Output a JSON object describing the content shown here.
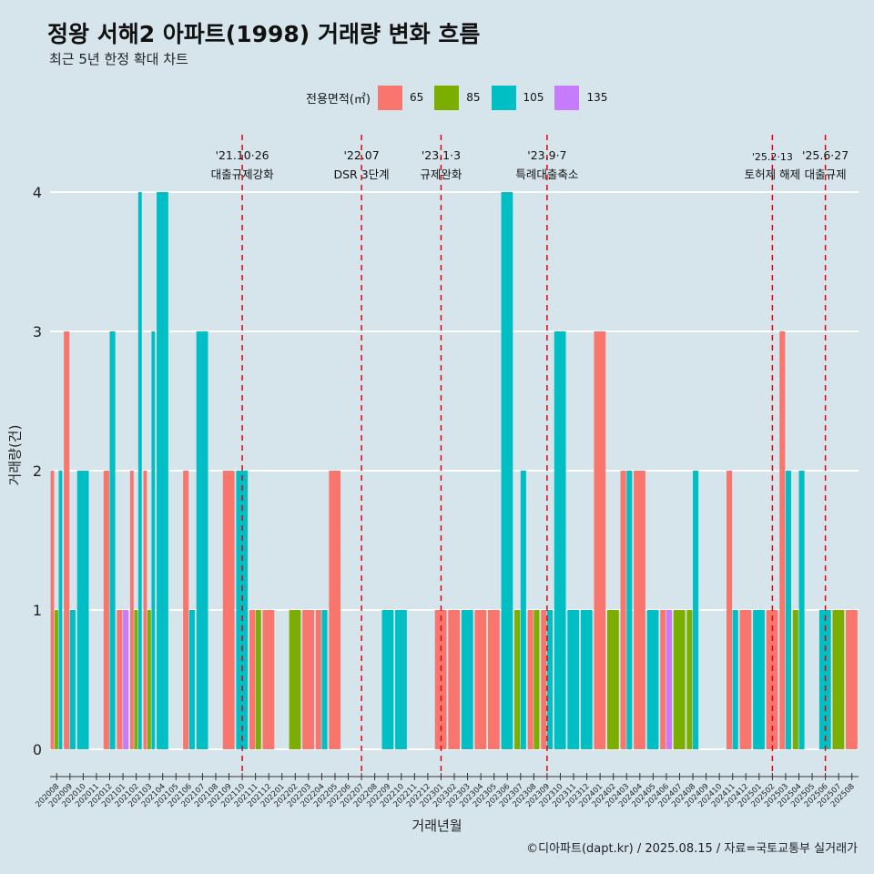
{
  "chart_data": {
    "type": "bar",
    "title": "정왕 서해2 아파트(1998) 거래량 변화 흐름",
    "subtitle": "최근 5년 한정 확대 차트",
    "xlabel": "거래년월",
    "ylabel": "거래량(건)",
    "caption": "©디아파트(dapt.kr) / 2025.08.15 / 자료=국토교통부 실거래가",
    "legend_title": "전용면적(㎡)",
    "legend_position": "top",
    "ylim": [
      0,
      4.4
    ],
    "yticks": [
      0,
      1,
      2,
      3,
      4
    ],
    "grid": true,
    "categories": [
      "202008",
      "202009",
      "202010",
      "202011",
      "202012",
      "202101",
      "202102",
      "202103",
      "202104",
      "202105",
      "202106",
      "202107",
      "202108",
      "202109",
      "202110",
      "202111",
      "202112",
      "202201",
      "202202",
      "202203",
      "202204",
      "202205",
      "202206",
      "202207",
      "202208",
      "202209",
      "202210",
      "202211",
      "202212",
      "202301",
      "202302",
      "202303",
      "202304",
      "202305",
      "202306",
      "202307",
      "202308",
      "202309",
      "202310",
      "202311",
      "202312",
      "202401",
      "202402",
      "202403",
      "202404",
      "202405",
      "202406",
      "202407",
      "202408",
      "202409",
      "202410",
      "202411",
      "202412",
      "202501",
      "202502",
      "202503",
      "202504",
      "202505",
      "202506",
      "202507",
      "202508"
    ],
    "series": [
      {
        "name": "65",
        "color": "#f8766d",
        "values": [
          2,
          3,
          0,
          0,
          2,
          1,
          2,
          2,
          0,
          0,
          2,
          0,
          0,
          2,
          0,
          1,
          1,
          0,
          0,
          1,
          1,
          2,
          0,
          0,
          0,
          0,
          0,
          0,
          0,
          1,
          1,
          0,
          1,
          1,
          0,
          0,
          1,
          1,
          0,
          0,
          0,
          3,
          0,
          2,
          2,
          0,
          1,
          0,
          0,
          0,
          0,
          2,
          1,
          0,
          1,
          3,
          0,
          0,
          0,
          0,
          1
        ]
      },
      {
        "name": "85",
        "color": "#7cae00",
        "values": [
          1,
          0,
          0,
          0,
          0,
          0,
          1,
          1,
          0,
          0,
          0,
          0,
          0,
          0,
          0,
          1,
          0,
          0,
          1,
          0,
          0,
          0,
          0,
          0,
          0,
          0,
          0,
          0,
          0,
          0,
          0,
          0,
          0,
          0,
          0,
          1,
          1,
          0,
          0,
          0,
          0,
          0,
          1,
          0,
          0,
          0,
          0,
          1,
          1,
          0,
          0,
          0,
          0,
          0,
          0,
          0,
          1,
          0,
          0,
          1,
          0
        ]
      },
      {
        "name": "105",
        "color": "#00bfc4",
        "values": [
          2,
          1,
          2,
          0,
          3,
          0,
          4,
          3,
          4,
          0,
          1,
          3,
          0,
          0,
          2,
          0,
          0,
          0,
          0,
          0,
          1,
          0,
          0,
          0,
          0,
          1,
          1,
          0,
          0,
          0,
          0,
          1,
          0,
          0,
          4,
          2,
          0,
          1,
          3,
          1,
          1,
          0,
          0,
          2,
          0,
          1,
          0,
          0,
          2,
          0,
          0,
          1,
          0,
          1,
          0,
          2,
          2,
          0,
          1,
          0,
          0
        ]
      },
      {
        "name": "135",
        "color": "#c77cff",
        "values": [
          0,
          0,
          0,
          0,
          0,
          1,
          0,
          0,
          0,
          0,
          0,
          0,
          0,
          0,
          0,
          0,
          0,
          0,
          0,
          0,
          0,
          0,
          0,
          0,
          0,
          0,
          0,
          0,
          0,
          0,
          0,
          0,
          0,
          0,
          0,
          0,
          0,
          0,
          0,
          0,
          0,
          0,
          0,
          0,
          0,
          0,
          1,
          0,
          0,
          0,
          0,
          0,
          0,
          0,
          0,
          0,
          0,
          0,
          0,
          0,
          0
        ]
      }
    ],
    "annotations": [
      {
        "month": "202110",
        "date": "'21.10·26",
        "label": "대출규제강화"
      },
      {
        "month": "202207",
        "date": "'22.07",
        "label": "DSR 3단계"
      },
      {
        "month": "202301",
        "date": "'23.1·3",
        "label": "규제완화"
      },
      {
        "month": "202309",
        "date": "'23.9·7",
        "label": "특례대출축소"
      },
      {
        "month": "202502",
        "date": "'25.2·13",
        "label": "토허제 해제"
      },
      {
        "month": "202506",
        "date": "'25.6·27",
        "label": "대출규제"
      }
    ],
    "annotation_color": "#e8000b"
  }
}
